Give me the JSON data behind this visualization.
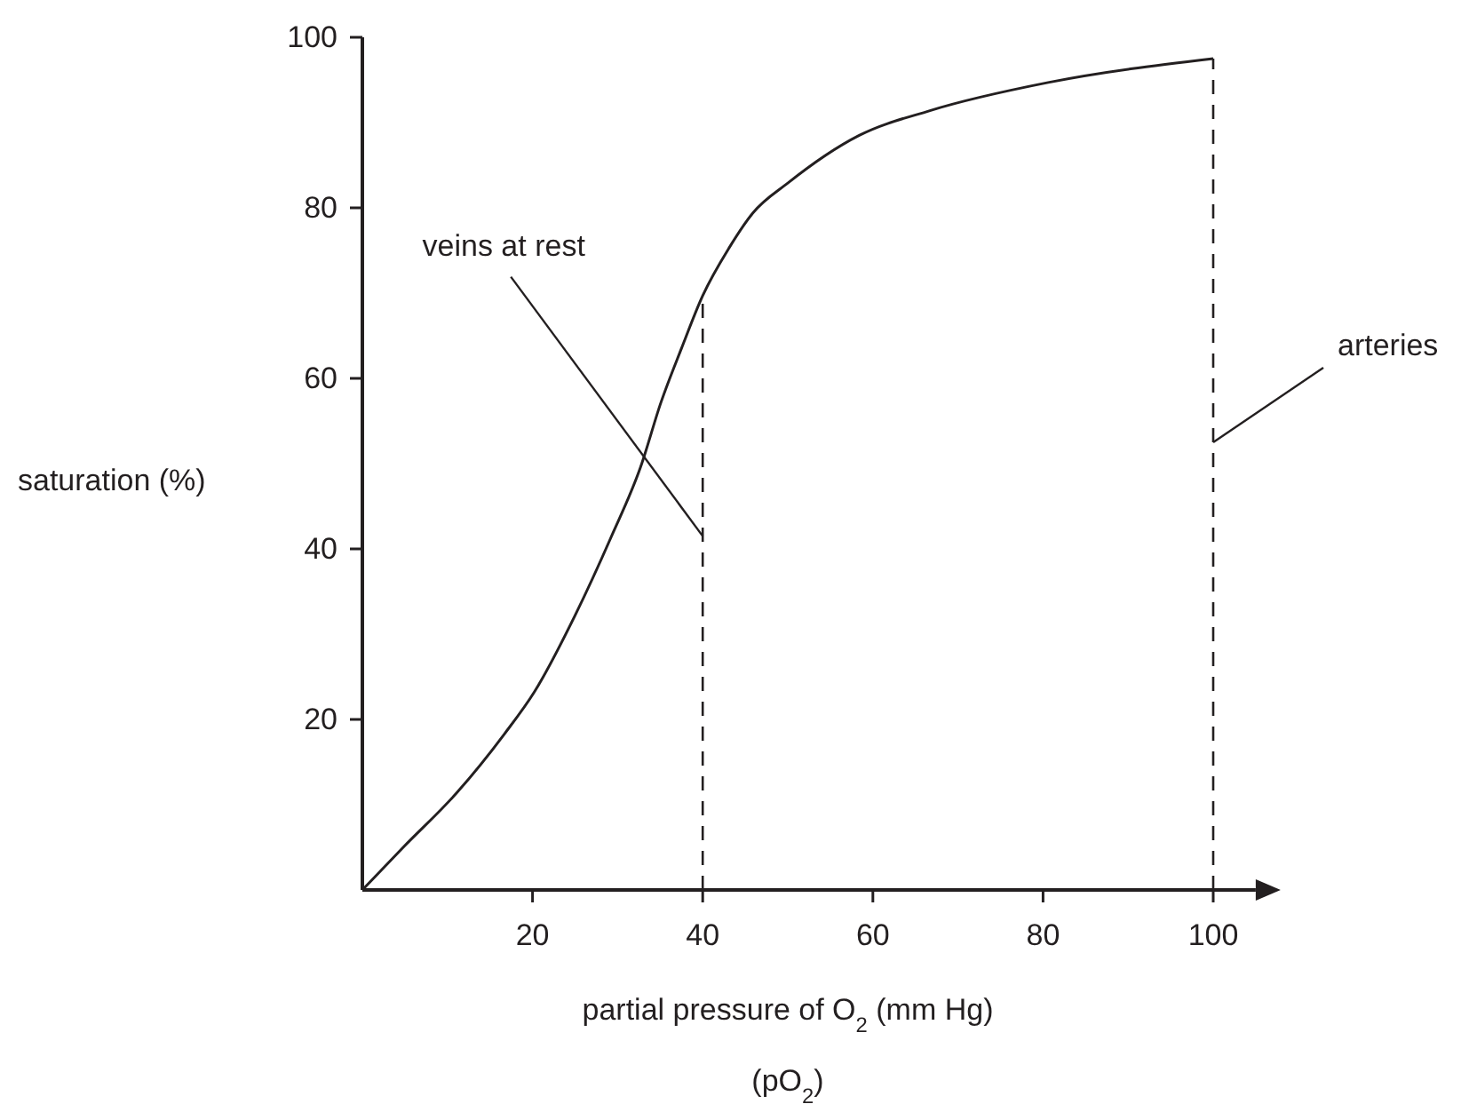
{
  "chart_data": {
    "type": "line",
    "xlabel": "partial pressure of O$_{2}$ (mm Hg)\n(pO$_{2}$)",
    "ylabel": "saturation (%)",
    "x": [
      0,
      4.9,
      11.1,
      16.7,
      20.2,
      25,
      29.2,
      32.7,
      35.1,
      37.5,
      40,
      43.1,
      45.9,
      50,
      58.4,
      66.7,
      80.6,
      100
    ],
    "series": [
      {
        "color": "#231f20",
        "values": [
          0,
          5.1,
          11.4,
          18.3,
          23.2,
          32.2,
          41.3,
          49.6,
          57.2,
          63.5,
          69.7,
          75.3,
          79.4,
          82.9,
          88.5,
          91.4,
          94.7,
          97.5
        ]
      }
    ],
    "xlim": [
      0,
      105
    ],
    "ylim": [
      0,
      100
    ],
    "xticks": [
      20,
      40,
      60,
      80,
      100
    ],
    "yticks": [
      20,
      40,
      60,
      80,
      100
    ],
    "ref_lines": [
      {
        "axis": "x",
        "value": 40,
        "line_style": "dashed"
      },
      {
        "axis": "x",
        "value": 100,
        "line_style": "dashed"
      }
    ],
    "annotations": [
      {
        "text": "veins at rest",
        "x": 40,
        "y": 41.5
      },
      {
        "text": "arteries",
        "x": 100,
        "y": 52.5
      }
    ],
    "grid": false,
    "marker": "none",
    "line_style": "solid"
  }
}
